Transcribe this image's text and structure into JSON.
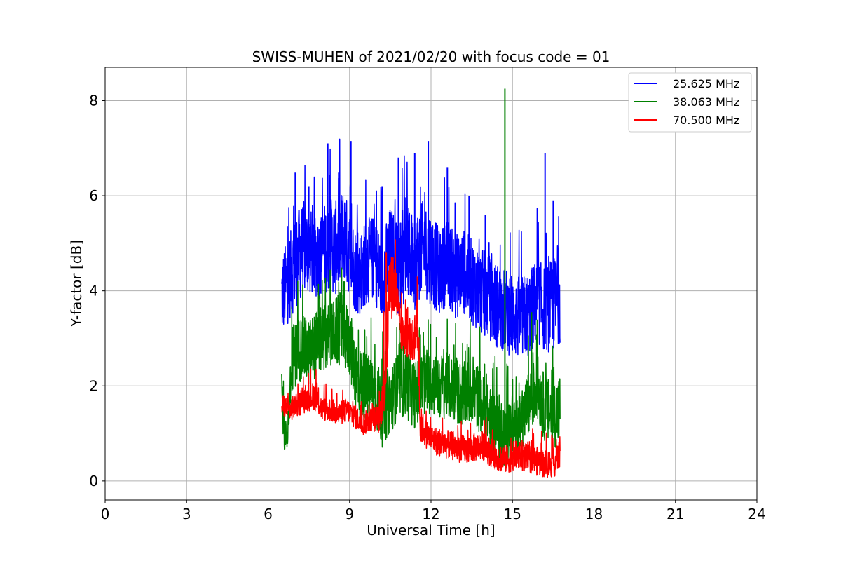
{
  "chart_data": {
    "type": "line",
    "title": "SWISS-MUHEN of 2021/02/20 with focus code = 01",
    "xlabel": "Universal Time [h]",
    "ylabel": "Y-factor [dB]",
    "xlim": [
      0,
      24
    ],
    "ylim": [
      -0.4,
      8.7
    ],
    "xticks": [
      0,
      3,
      6,
      9,
      12,
      15,
      18,
      21,
      24
    ],
    "yticks": [
      0,
      2,
      4,
      6,
      8
    ],
    "grid": true,
    "legend_position": "top-right",
    "series": [
      {
        "name": "25.625 MHz",
        "color": "#0000ff",
        "x": [
          6.5,
          6.8,
          7.0,
          7.3,
          7.6,
          7.9,
          8.2,
          8.5,
          8.8,
          9.0,
          9.3,
          9.6,
          9.9,
          10.2,
          10.5,
          10.8,
          11.1,
          11.4,
          11.7,
          12.0,
          12.3,
          12.6,
          12.9,
          13.2,
          13.5,
          13.8,
          14.1,
          14.4,
          14.7,
          15.0,
          15.3,
          15.6,
          15.9,
          16.2,
          16.5,
          16.75
        ],
        "y": [
          3.9,
          4.3,
          4.6,
          4.9,
          4.8,
          4.7,
          5.0,
          4.9,
          5.2,
          4.8,
          4.3,
          4.6,
          4.7,
          4.2,
          4.8,
          4.5,
          4.8,
          4.6,
          4.9,
          4.7,
          4.4,
          4.6,
          4.3,
          4.4,
          4.2,
          4.0,
          3.9,
          3.7,
          3.6,
          3.5,
          3.4,
          3.5,
          3.8,
          3.6,
          3.7,
          3.9
        ],
        "band": [
          0.9,
          0.9,
          1.0,
          1.0,
          0.9,
          0.9,
          1.0,
          1.0,
          1.0,
          0.9,
          0.9,
          0.9,
          0.9,
          0.9,
          1.0,
          1.0,
          1.0,
          1.0,
          1.0,
          1.0,
          0.9,
          0.9,
          0.9,
          0.9,
          0.9,
          0.9,
          0.9,
          0.9,
          0.9,
          0.9,
          0.9,
          0.9,
          0.9,
          0.9,
          1.0,
          1.0
        ],
        "peaks": [
          [
            7.0,
            6.5
          ],
          [
            7.5,
            6.2
          ],
          [
            8.2,
            7.1
          ],
          [
            8.6,
            6.5
          ],
          [
            9.05,
            7.15
          ],
          [
            10.2,
            6.2
          ],
          [
            10.8,
            6.8
          ],
          [
            11.4,
            6.9
          ],
          [
            11.9,
            7.15
          ],
          [
            12.6,
            6.6
          ],
          [
            13.4,
            6.0
          ],
          [
            14.0,
            5.6
          ],
          [
            16.2,
            6.9
          ],
          [
            16.5,
            5.9
          ]
        ]
      },
      {
        "name": "38.063 MHz",
        "color": "#008000",
        "x": [
          6.5,
          6.6,
          6.7,
          6.9,
          7.2,
          7.5,
          7.8,
          8.1,
          8.4,
          8.7,
          9.0,
          9.3,
          9.6,
          9.9,
          10.2,
          10.5,
          10.8,
          11.1,
          11.4,
          11.7,
          12.0,
          12.3,
          12.6,
          12.9,
          13.2,
          13.5,
          13.8,
          14.1,
          14.4,
          14.7,
          15.0,
          15.3,
          15.6,
          15.9,
          16.2,
          16.5,
          16.75
        ],
        "y": [
          2.0,
          1.0,
          0.9,
          2.6,
          2.8,
          2.7,
          2.9,
          3.0,
          3.1,
          3.2,
          2.9,
          2.1,
          2.0,
          1.9,
          1.5,
          1.7,
          2.0,
          2.1,
          1.8,
          2.0,
          2.1,
          2.0,
          2.0,
          1.9,
          1.8,
          1.9,
          1.7,
          1.4,
          1.2,
          1.0,
          1.1,
          1.2,
          1.6,
          2.0,
          1.5,
          1.4,
          1.5
        ],
        "band": [
          0.6,
          0.4,
          0.3,
          0.7,
          0.7,
          0.7,
          0.7,
          0.7,
          0.7,
          0.8,
          0.7,
          0.8,
          0.7,
          0.7,
          0.8,
          0.7,
          0.7,
          0.8,
          0.7,
          0.7,
          0.7,
          0.7,
          0.7,
          0.7,
          0.7,
          0.7,
          0.7,
          0.6,
          0.7,
          0.7,
          0.6,
          0.6,
          0.7,
          0.7,
          0.7,
          0.7,
          0.8
        ],
        "peaks": [
          [
            7.9,
            3.9
          ],
          [
            8.8,
            4.2
          ],
          [
            14.72,
            8.25
          ],
          [
            15.7,
            3.55
          ]
        ]
      },
      {
        "name": "70.500 MHz",
        "color": "#ff0000",
        "x": [
          6.5,
          6.8,
          7.1,
          7.4,
          7.7,
          8.0,
          8.3,
          8.6,
          8.9,
          9.2,
          9.5,
          9.8,
          10.1,
          10.3,
          10.5,
          10.7,
          10.9,
          11.1,
          11.3,
          11.5,
          11.6,
          11.8,
          12.1,
          12.4,
          12.7,
          13.0,
          13.3,
          13.6,
          13.9,
          14.2,
          14.5,
          14.8,
          15.1,
          15.4,
          15.7,
          16.0,
          16.3,
          16.6,
          16.75
        ],
        "y": [
          1.6,
          1.5,
          1.6,
          1.7,
          1.8,
          1.5,
          1.5,
          1.4,
          1.5,
          1.35,
          1.2,
          1.3,
          1.3,
          2.2,
          4.1,
          4.0,
          3.1,
          3.0,
          2.9,
          3.3,
          1.2,
          1.0,
          0.85,
          0.8,
          0.75,
          0.7,
          0.65,
          0.7,
          0.75,
          0.6,
          0.5,
          0.45,
          0.55,
          0.5,
          0.45,
          0.4,
          0.35,
          0.4,
          0.6
        ],
        "band": [
          0.25,
          0.25,
          0.25,
          0.25,
          0.3,
          0.25,
          0.25,
          0.25,
          0.25,
          0.25,
          0.25,
          0.25,
          0.3,
          0.8,
          0.7,
          0.6,
          0.4,
          0.4,
          0.4,
          0.7,
          0.4,
          0.3,
          0.3,
          0.3,
          0.3,
          0.3,
          0.3,
          0.3,
          0.3,
          0.3,
          0.3,
          0.3,
          0.3,
          0.3,
          0.3,
          0.3,
          0.3,
          0.3,
          0.3
        ],
        "peaks": [
          [
            10.35,
            4.8
          ],
          [
            10.6,
            4.7
          ],
          [
            11.5,
            4.3
          ]
        ]
      }
    ]
  }
}
